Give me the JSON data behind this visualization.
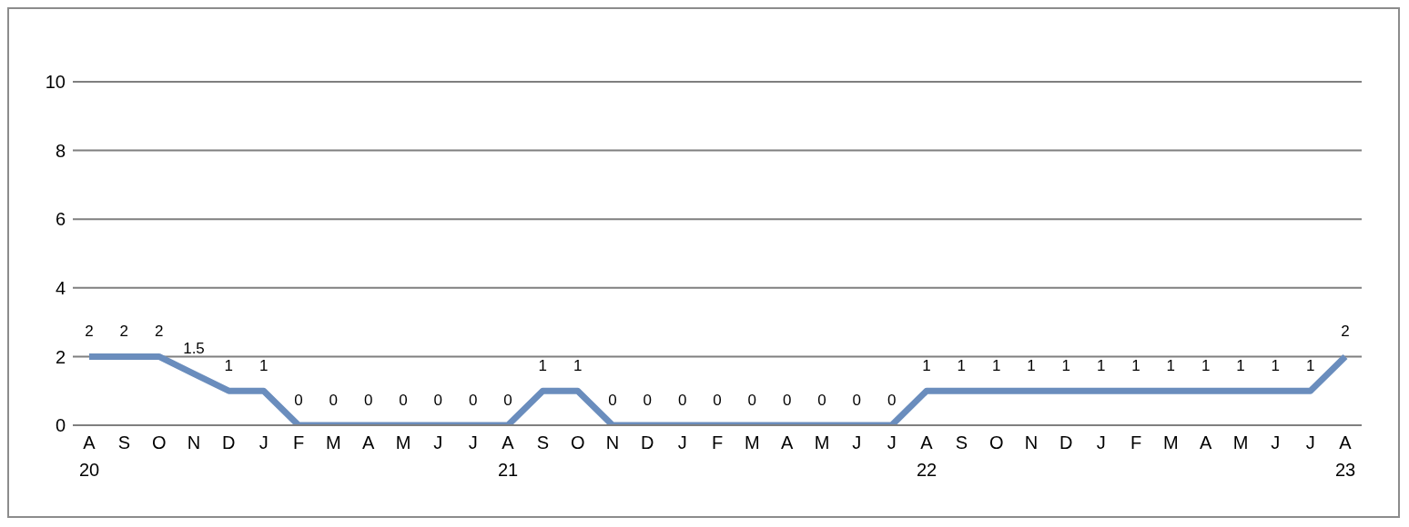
{
  "chart_data": {
    "type": "line",
    "categories": [
      "A\n20",
      "S",
      "O",
      "N",
      "D",
      "J",
      "F",
      "M",
      "A",
      "M",
      "J",
      "J",
      "A\n21",
      "S",
      "O",
      "N",
      "D",
      "J",
      "F",
      "M",
      "A",
      "M",
      "J",
      "J",
      "A\n22",
      "S",
      "O",
      "N",
      "D",
      "J",
      "F",
      "M",
      "A",
      "M",
      "J",
      "J",
      "A\n23"
    ],
    "series": [
      {
        "color": "#6a8dbd",
        "values": [
          2,
          2,
          2,
          1.5,
          1,
          1,
          0,
          0,
          0,
          0,
          0,
          0,
          0,
          1,
          1,
          0,
          0,
          0,
          0,
          0,
          0,
          0,
          0,
          0,
          1,
          1,
          1,
          1,
          1,
          1,
          1,
          1,
          1,
          1,
          1,
          1,
          2
        ]
      }
    ],
    "ylim": [
      0,
      10
    ],
    "yticks": [
      0,
      2,
      4,
      6,
      8,
      10
    ],
    "grid": "y",
    "data_labels": true,
    "marker": "none",
    "line_style": "solid",
    "legend": false
  }
}
